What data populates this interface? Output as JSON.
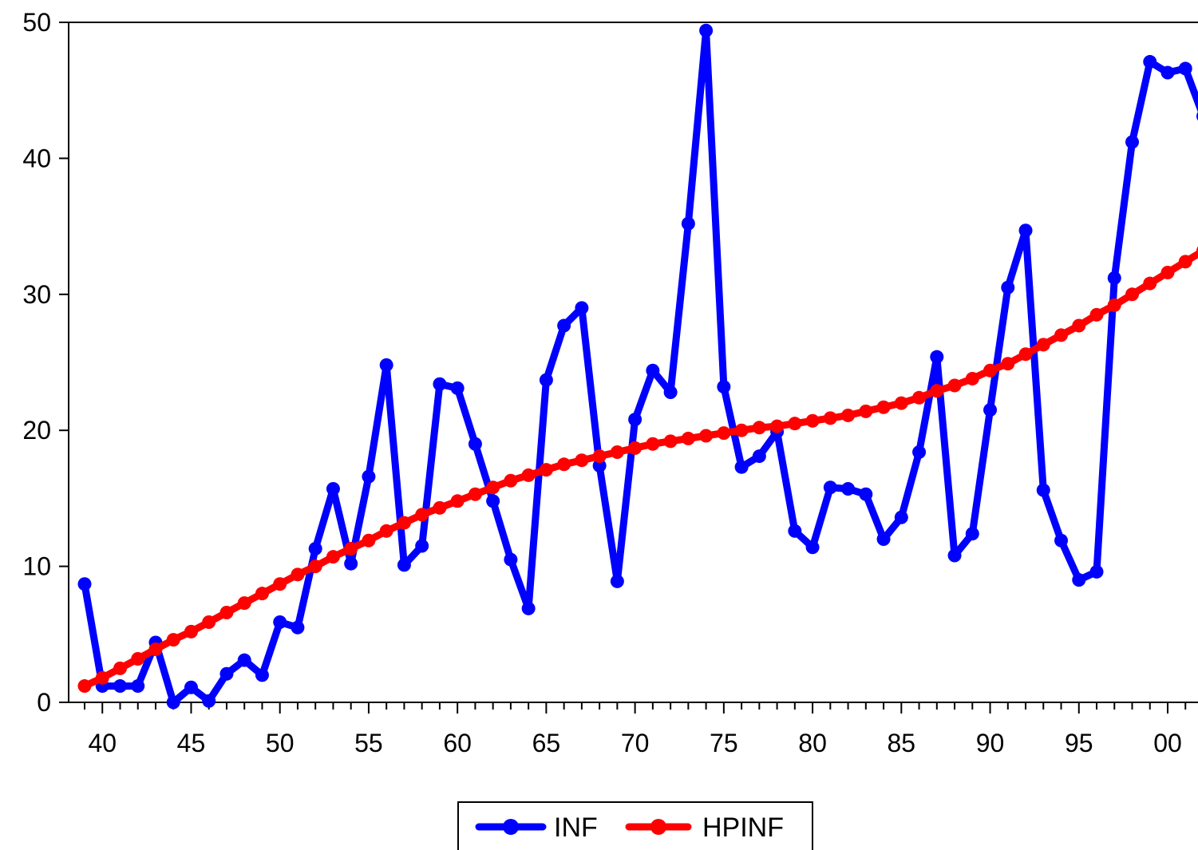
{
  "chart_data": {
    "type": "line",
    "title": "",
    "xlabel": "",
    "ylabel": "",
    "x": [
      1939,
      1940,
      1941,
      1942,
      1943,
      1944,
      1945,
      1946,
      1947,
      1948,
      1949,
      1950,
      1951,
      1952,
      1953,
      1954,
      1955,
      1956,
      1957,
      1958,
      1959,
      1960,
      1961,
      1962,
      1963,
      1964,
      1965,
      1966,
      1967,
      1968,
      1969,
      1970,
      1971,
      1972,
      1973,
      1974,
      1975,
      1976,
      1977,
      1978,
      1979,
      1980,
      1981,
      1982,
      1983,
      1984,
      1985,
      1986,
      1987,
      1988,
      1989,
      1990,
      1991,
      1992,
      1993,
      1994,
      1995,
      1996,
      1997,
      1998,
      1999,
      2000,
      2001,
      2002
    ],
    "xlim": [
      1938,
      2002
    ],
    "ylim": [
      0,
      50
    ],
    "x_ticks": [
      {
        "value": 1940,
        "label": "40"
      },
      {
        "value": 1945,
        "label": "45"
      },
      {
        "value": 1950,
        "label": "50"
      },
      {
        "value": 1955,
        "label": "55"
      },
      {
        "value": 1960,
        "label": "60"
      },
      {
        "value": 1965,
        "label": "65"
      },
      {
        "value": 1970,
        "label": "70"
      },
      {
        "value": 1975,
        "label": "75"
      },
      {
        "value": 1980,
        "label": "80"
      },
      {
        "value": 1985,
        "label": "85"
      },
      {
        "value": 1990,
        "label": "90"
      },
      {
        "value": 1995,
        "label": "95"
      },
      {
        "value": 2000,
        "label": "00"
      }
    ],
    "y_ticks": [
      {
        "value": 0,
        "label": "0"
      },
      {
        "value": 10,
        "label": "10"
      },
      {
        "value": 20,
        "label": "20"
      },
      {
        "value": 30,
        "label": "30"
      },
      {
        "value": 40,
        "label": "40"
      },
      {
        "value": 50,
        "label": "50"
      }
    ],
    "grid": false,
    "legend_position": "bottom-center",
    "series": [
      {
        "name": "INF",
        "color": "#0000ff",
        "values": [
          8.7,
          1.2,
          1.2,
          1.2,
          4.4,
          0.0,
          1.1,
          0.1,
          2.1,
          3.1,
          2.0,
          5.9,
          5.5,
          11.3,
          15.7,
          10.2,
          16.6,
          24.8,
          10.1,
          11.5,
          23.4,
          23.1,
          19.0,
          14.8,
          10.5,
          6.9,
          23.7,
          27.7,
          29.0,
          17.4,
          8.9,
          20.8,
          24.4,
          22.8,
          35.2,
          49.4,
          23.2,
          17.3,
          18.1,
          19.9,
          12.6,
          11.4,
          15.8,
          15.7,
          15.3,
          12.0,
          13.6,
          18.4,
          25.4,
          10.8,
          12.4,
          21.5,
          30.5,
          34.7,
          15.6,
          11.9,
          9.0,
          9.6,
          31.2,
          41.2,
          47.1,
          46.3,
          46.6,
          43.1
        ]
      },
      {
        "name": "HPINF",
        "color": "#ff0000",
        "values": [
          1.2,
          1.8,
          2.5,
          3.2,
          3.9,
          4.6,
          5.2,
          5.9,
          6.6,
          7.3,
          8.0,
          8.7,
          9.4,
          10.0,
          10.7,
          11.3,
          11.9,
          12.6,
          13.2,
          13.8,
          14.3,
          14.8,
          15.3,
          15.8,
          16.3,
          16.7,
          17.1,
          17.5,
          17.8,
          18.1,
          18.4,
          18.7,
          19.0,
          19.2,
          19.4,
          19.6,
          19.8,
          20.0,
          20.2,
          20.3,
          20.5,
          20.7,
          20.9,
          21.1,
          21.4,
          21.7,
          22.0,
          22.4,
          22.9,
          23.3,
          23.8,
          24.4,
          24.9,
          25.6,
          26.3,
          27.0,
          27.7,
          28.5,
          29.2,
          30.0,
          30.8,
          31.6,
          32.4,
          33.2
        ]
      }
    ]
  }
}
